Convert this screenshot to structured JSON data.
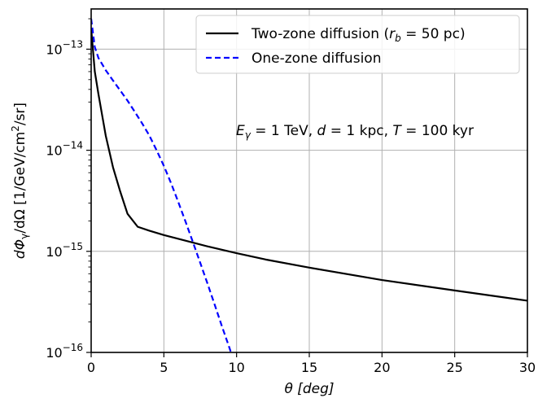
{
  "chart_data": {
    "type": "line",
    "xlabel_text": "θ [deg]",
    "ylabel_text": "dΦ",
    "ylabel_sub": "γ",
    "ylabel_rest": "/dΩ [1/GeV/cm",
    "ylabel_sup": "2",
    "ylabel_end": "/sr]",
    "xlim": [
      0,
      30
    ],
    "ylim": [
      1e-16,
      2.5e-13
    ],
    "yscale": "log",
    "grid": true,
    "legend_position": "upper-right",
    "x_ticks": [
      {
        "value": 0,
        "label": "0"
      },
      {
        "value": 5,
        "label": "5"
      },
      {
        "value": 10,
        "label": "10"
      },
      {
        "value": 15,
        "label": "15"
      },
      {
        "value": 20,
        "label": "20"
      },
      {
        "value": 25,
        "label": "25"
      },
      {
        "value": 30,
        "label": "30"
      }
    ],
    "y_ticks": [
      {
        "value": 1e-16,
        "base": "10",
        "exp": "−16"
      },
      {
        "value": 1e-15,
        "base": "10",
        "exp": "−15"
      },
      {
        "value": 1e-14,
        "base": "10",
        "exp": "−14"
      },
      {
        "value": 1e-13,
        "base": "10",
        "exp": "−13"
      }
    ],
    "annotation": {
      "E": "E",
      "E_sub": "γ",
      "E_val": " = 1 TeV, ",
      "d": "d",
      "d_val": " = 1 kpc, ",
      "T": "T",
      "T_val": " = 100 kyr"
    },
    "series": [
      {
        "legend_pre": "Two-zone diffusion (",
        "legend_r": "r",
        "legend_sub": "b",
        "legend_post": " = 50 pc)",
        "color": "#000000",
        "dash": "solid",
        "x": [
          0,
          0.25,
          0.5,
          1,
          1.5,
          2,
          2.5,
          3.2,
          4,
          5,
          6,
          7,
          8,
          10,
          12,
          15,
          20,
          25,
          30
        ],
        "y": [
          1.6e-13,
          6e-14,
          3.6e-14,
          1.4e-14,
          6.8e-15,
          3.9e-15,
          2.35e-15,
          1.75e-15,
          1.6e-15,
          1.45e-15,
          1.33e-15,
          1.22e-15,
          1.12e-15,
          9.6e-16,
          8.3e-16,
          6.9e-16,
          5.2e-16,
          4.1e-16,
          3.25e-16
        ]
      },
      {
        "legend_pre": "One-zone diffusion",
        "color": "#0000ff",
        "dash": "dashed",
        "x": [
          0,
          0.25,
          0.5,
          1,
          1.5,
          2,
          2.5,
          3,
          3.5,
          4,
          4.5,
          5,
          5.5,
          6,
          6.5,
          7,
          7.5,
          8,
          8.5,
          9,
          9.5,
          10
        ],
        "y": [
          2e-13,
          1.05e-13,
          8.2e-14,
          6.2e-14,
          4.9e-14,
          3.9e-14,
          3.1e-14,
          2.4e-14,
          1.85e-14,
          1.4e-14,
          1e-14,
          7e-15,
          4.7e-15,
          3.05e-15,
          1.95e-15,
          1.23e-15,
          7.7e-16,
          4.8e-16,
          2.95e-16,
          1.8e-16,
          1.12e-16,
          6.8e-17
        ]
      }
    ]
  }
}
